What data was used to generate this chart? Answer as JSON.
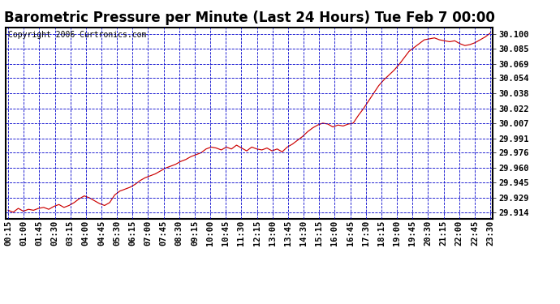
{
  "title": "Barometric Pressure per Minute (Last 24 Hours) Tue Feb 7 00:00",
  "copyright": "Copyright 2006 Curtronics.com",
  "yticks": [
    29.914,
    29.929,
    29.945,
    29.96,
    29.976,
    29.991,
    30.007,
    30.022,
    30.038,
    30.054,
    30.069,
    30.085,
    30.1
  ],
  "ytick_labels": [
    "29.914",
    "29.929",
    "29.945",
    "29.960",
    "29.976",
    "29.991",
    "30.007",
    "30.022",
    "30.038",
    "30.054",
    "30.069",
    "30.085",
    "30.100"
  ],
  "ylim": [
    29.907,
    30.107
  ],
  "xtick_labels": [
    "00:15",
    "01:00",
    "01:45",
    "02:30",
    "03:15",
    "04:00",
    "04:45",
    "05:30",
    "06:15",
    "07:00",
    "07:45",
    "08:30",
    "09:15",
    "10:00",
    "10:45",
    "11:30",
    "12:15",
    "13:00",
    "13:45",
    "14:30",
    "15:15",
    "16:00",
    "16:45",
    "17:30",
    "18:15",
    "19:00",
    "19:45",
    "20:30",
    "21:15",
    "22:00",
    "22:45",
    "23:30"
  ],
  "line_color": "#cc0000",
  "background_color": "#ffffff",
  "grid_color": "#0000cc",
  "title_fontsize": 12,
  "copyright_fontsize": 7,
  "tick_label_fontsize": 7.5,
  "border_color": "#000000",
  "pressure_data": [
    29.916,
    29.914,
    29.918,
    29.915,
    29.917,
    29.916,
    29.918,
    29.919,
    29.917,
    29.92,
    29.922,
    29.919,
    29.921,
    29.924,
    29.928,
    29.931,
    29.929,
    29.926,
    29.923,
    29.921,
    29.924,
    29.932,
    29.936,
    29.938,
    29.94,
    29.943,
    29.947,
    29.95,
    29.952,
    29.954,
    29.957,
    29.96,
    29.962,
    29.964,
    29.967,
    29.969,
    29.972,
    29.974,
    29.976,
    29.98,
    29.982,
    29.981,
    29.979,
    29.982,
    29.98,
    29.984,
    29.981,
    29.978,
    29.982,
    29.98,
    29.979,
    29.981,
    29.978,
    29.98,
    29.977,
    29.982,
    29.985,
    29.989,
    29.993,
    29.998,
    30.002,
    30.005,
    30.007,
    30.006,
    30.003,
    30.005,
    30.004,
    30.006,
    30.007,
    30.015,
    30.022,
    30.03,
    30.038,
    30.046,
    30.052,
    30.057,
    30.062,
    30.068,
    30.075,
    30.082,
    30.086,
    30.09,
    30.094,
    30.095,
    30.096,
    30.094,
    30.093,
    30.092,
    30.093,
    30.09,
    30.088,
    30.089,
    30.091,
    30.094,
    30.097,
    30.101
  ]
}
